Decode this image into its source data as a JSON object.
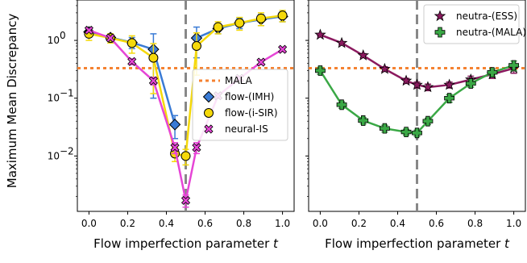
{
  "chart_data": [
    {
      "type": "line",
      "panel": "left",
      "xlabel": "Flow imperfection parameter ",
      "xlabel_italic": "t",
      "ylabel": "Maximum Mean Discrepancy",
      "yscale": "log",
      "xlim": [
        -0.06,
        1.06
      ],
      "ylim": [
        0.0011,
        5.0
      ],
      "x_ticks": [
        0.0,
        0.2,
        0.4,
        0.6,
        0.8,
        1.0
      ],
      "x_tick_labels": [
        "0.0",
        "0.2",
        "0.4",
        "0.6",
        "0.8",
        "1.0"
      ],
      "y_ticks": [
        0.01,
        0.1,
        1
      ],
      "y_tick_labels": [
        "10",
        "10",
        "10"
      ],
      "y_tick_exponents": [
        "−2",
        "−1",
        "0"
      ],
      "vline_x": 0.5,
      "hline": {
        "name": "MALA",
        "y": 0.33,
        "color": "#f58231"
      },
      "legend_position": "center-right",
      "series": [
        {
          "name": "flow-(IMH)",
          "marker": "diamond",
          "color": "#3a7bd5",
          "x": [
            0.0,
            0.111,
            0.222,
            0.333,
            0.444,
            0.5,
            0.556,
            0.667,
            0.778,
            0.889,
            1.0
          ],
          "y": [
            1.4,
            1.12,
            0.92,
            0.7,
            0.035,
            null,
            1.1,
            1.6,
            2.0,
            2.3,
            2.6
          ],
          "err": [
            0.25,
            0.15,
            0.2,
            0.6,
            0.015,
            null,
            0.6,
            0.3,
            0.4,
            0.5,
            0.5
          ]
        },
        {
          "name": "flow-(i-SIR)",
          "marker": "circle",
          "color": "#f5d90a",
          "x": [
            0.0,
            0.111,
            0.222,
            0.333,
            0.444,
            0.5,
            0.556,
            0.667,
            0.778,
            0.889,
            1.0
          ],
          "y": [
            1.3,
            1.1,
            0.9,
            0.5,
            0.011,
            0.01,
            0.8,
            1.7,
            2.0,
            2.4,
            2.7
          ],
          "err": [
            0.3,
            0.2,
            0.3,
            0.38,
            0.003,
            0.003,
            0.55,
            0.4,
            0.5,
            0.6,
            0.6
          ]
        },
        {
          "name": "neural-IS",
          "marker": "x",
          "color": "#e645d6",
          "x": [
            0.0,
            0.111,
            0.222,
            0.333,
            0.444,
            0.5,
            0.556,
            0.667,
            0.778,
            0.889,
            1.0
          ],
          "y": [
            1.5,
            1.1,
            0.43,
            0.2,
            0.014,
            0.0017,
            0.014,
            0.11,
            0.22,
            0.42,
            0.7
          ],
          "err": [
            0.1,
            0.08,
            0.05,
            0.03,
            0.003,
            0.0004,
            0.003,
            0.01,
            0.02,
            0.04,
            0.06
          ]
        }
      ]
    },
    {
      "type": "line",
      "panel": "right",
      "xlabel": "Flow imperfection parameter ",
      "xlabel_italic": "t",
      "yscale": "log",
      "xlim": [
        -0.06,
        1.06
      ],
      "ylim": [
        0.0011,
        5.0
      ],
      "x_ticks": [
        0.0,
        0.2,
        0.4,
        0.6,
        0.8,
        1.0
      ],
      "x_tick_labels": [
        "0.0",
        "0.2",
        "0.4",
        "0.6",
        "0.8",
        "1.0"
      ],
      "vline_x": 0.5,
      "hline": {
        "name": "",
        "y": 0.33,
        "color": "#f58231"
      },
      "legend_position": "top-right",
      "series": [
        {
          "name": "neutra-(ESS)",
          "marker": "star",
          "color": "#8b1a5f",
          "x": [
            0.0,
            0.111,
            0.222,
            0.333,
            0.444,
            0.5,
            0.556,
            0.667,
            0.778,
            0.889,
            1.0
          ],
          "y": [
            1.25,
            0.9,
            0.55,
            0.32,
            0.2,
            0.17,
            0.155,
            0.17,
            0.21,
            0.26,
            0.33
          ],
          "err": [
            0.05,
            0.05,
            0.04,
            0.03,
            0.02,
            0.02,
            0.02,
            0.02,
            0.03,
            0.04,
            0.06
          ]
        },
        {
          "name": "neutra-(MALA)",
          "marker": "plus",
          "color": "#3aa845",
          "x": [
            0.0,
            0.111,
            0.222,
            0.333,
            0.444,
            0.5,
            0.556,
            0.667,
            0.778,
            0.889,
            1.0
          ],
          "y": [
            0.3,
            0.077,
            0.041,
            0.03,
            0.026,
            0.025,
            0.04,
            0.1,
            0.18,
            0.28,
            0.37
          ],
          "err": [
            0.04,
            0.01,
            0.005,
            0.004,
            0.003,
            0.003,
            0.005,
            0.015,
            0.025,
            0.04,
            0.07
          ]
        }
      ]
    }
  ]
}
